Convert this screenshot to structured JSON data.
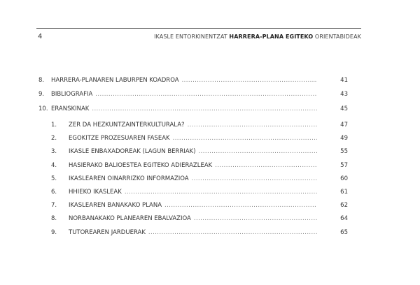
{
  "header": {
    "page_number": "4",
    "title_pre": "IKASLE ENTORKINENTZAT",
    "title_bold": "HARRERA-PLANA EGITEKO",
    "title_post": "ORIENTABIDEAK"
  },
  "toc": [
    {
      "num": "8.",
      "title": "HARRERA-PLANAREN LABURPEN KOADROA",
      "page": "41"
    },
    {
      "num": "9.",
      "title": "BIBLIOGRAFIA",
      "page": "43"
    },
    {
      "num": "10.",
      "title": "ERANSKINAK",
      "page": "45"
    }
  ],
  "appendices": [
    {
      "num": "1.",
      "title": "ZER DA HEZKUNTZAINTERKULTURALA?",
      "page": "47"
    },
    {
      "num": "2.",
      "title": "EGOKITZE PROZESUAREN FASEAK",
      "page": "49"
    },
    {
      "num": "3.",
      "title": "IKASLE ENBAXADOREAK (LAGUN BERRIAK)",
      "page": "55"
    },
    {
      "num": "4.",
      "title": "HASIERAKO BALIOESTEA EGITEKO ADIERAZLEAK",
      "page": "57"
    },
    {
      "num": "5.",
      "title": "IKASLEAREN OINARRIZKO INFORMAZIOA",
      "page": "60"
    },
    {
      "num": "6.",
      "title": "HHIEKO IKASLEAK",
      "page": "61"
    },
    {
      "num": "7.",
      "title": "IKASLEAREN BANAKAKO PLANA",
      "page": "62"
    },
    {
      "num": "8.",
      "title": "NORBANAKAKO PLANEAREN EBALVAZIOA",
      "page": "64"
    },
    {
      "num": "9.",
      "title": "TUTOREAREN JARDUERAK",
      "page": "65"
    }
  ]
}
